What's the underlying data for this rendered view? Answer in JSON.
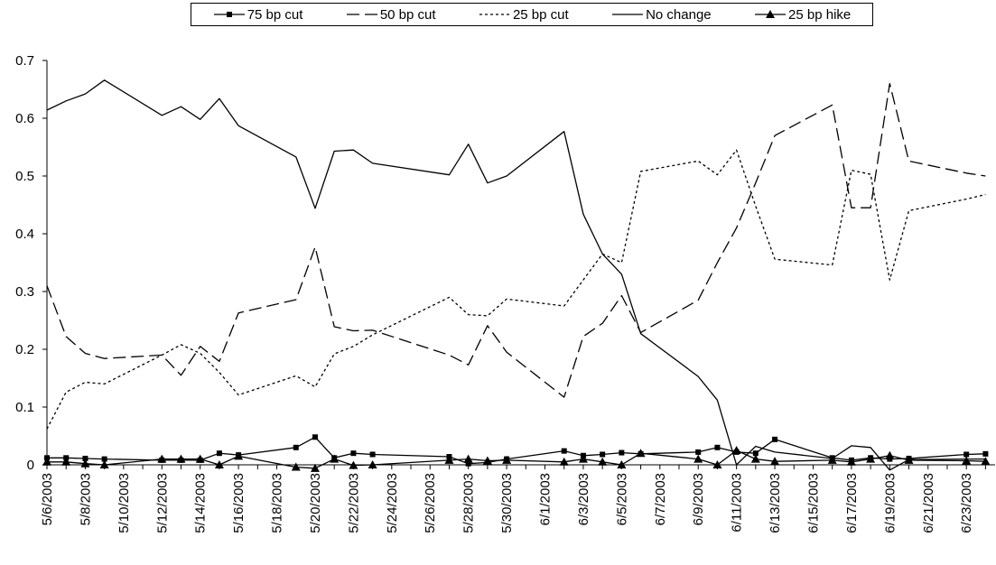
{
  "chart_data": {
    "type": "line",
    "title": "",
    "xlabel": "",
    "ylabel": "",
    "ylim": [
      0,
      0.7
    ],
    "yticks": [
      "0",
      "0.1",
      "0.2",
      "0.3",
      "0.4",
      "0.5",
      "0.6",
      "0.7"
    ],
    "xticks": [
      "5/6/2003",
      "5/8/2003",
      "5/10/2003",
      "5/12/2003",
      "5/14/2003",
      "5/16/2003",
      "5/18/2003",
      "5/20/2003",
      "5/22/2003",
      "5/24/2003",
      "5/26/2003",
      "5/28/2003",
      "5/30/2003",
      "6/1/2003",
      "6/3/2003",
      "6/5/2003",
      "6/7/2003",
      "6/9/2003",
      "6/11/2003",
      "6/13/2003",
      "6/15/2003",
      "6/17/2003",
      "6/19/2003",
      "6/21/2003",
      "6/23/2003"
    ],
    "legend_position": "top",
    "grid": false,
    "x": [
      "5/6/2003",
      "5/7/2003",
      "5/8/2003",
      "5/9/2003",
      "5/12/2003",
      "5/13/2003",
      "5/14/2003",
      "5/15/2003",
      "5/16/2003",
      "5/19/2003",
      "5/20/2003",
      "5/21/2003",
      "5/22/2003",
      "5/23/2003",
      "5/27/2003",
      "5/28/2003",
      "5/29/2003",
      "5/30/2003",
      "6/2/2003",
      "6/3/2003",
      "6/4/2003",
      "6/5/2003",
      "6/6/2003",
      "6/9/2003",
      "6/10/2003",
      "6/11/2003",
      "6/12/2003",
      "6/13/2003",
      "6/16/2003",
      "6/17/2003",
      "6/18/2003",
      "6/19/2003",
      "6/20/2003",
      "6/23/2003",
      "6/24/2003"
    ],
    "series": [
      {
        "name": "75 bp cut",
        "style": "solid-square",
        "values": [
          0.012,
          0.012,
          0.011,
          0.01,
          0.008,
          0.008,
          0.008,
          0.02,
          0.017,
          0.03,
          0.048,
          0.012,
          0.02,
          0.018,
          0.014,
          0.002,
          0.004,
          0.01,
          0.024,
          0.016,
          0.018,
          0.021,
          0.019,
          0.022,
          0.03,
          0.022,
          0.02,
          0.044,
          0.012,
          0.008,
          0.012,
          0.01,
          0.011,
          0.018,
          0.019
        ]
      },
      {
        "name": "50 bp cut",
        "style": "dashed",
        "values": [
          0.31,
          0.222,
          0.193,
          0.184,
          0.19,
          0.155,
          0.205,
          0.179,
          0.263,
          0.286,
          0.377,
          0.239,
          0.232,
          0.233,
          0.19,
          0.173,
          0.241,
          0.195,
          0.117,
          0.222,
          0.245,
          0.293,
          0.229,
          0.285,
          0.35,
          0.41,
          0.488,
          0.57,
          0.623,
          0.445,
          0.445,
          0.66,
          0.526,
          0.505,
          0.5
        ]
      },
      {
        "name": "25 bp cut",
        "style": "dotted",
        "values": [
          0.062,
          0.126,
          0.143,
          0.14,
          0.19,
          0.208,
          0.193,
          0.16,
          0.121,
          0.154,
          0.135,
          0.192,
          0.205,
          0.225,
          0.29,
          0.26,
          0.258,
          0.287,
          0.275,
          0.32,
          0.365,
          0.35,
          0.508,
          0.526,
          0.502,
          0.545,
          0.448,
          0.356,
          0.346,
          0.51,
          0.503,
          0.32,
          0.44,
          0.46,
          0.468
        ]
      },
      {
        "name": "No change",
        "style": "solid",
        "values": [
          0.614,
          0.63,
          0.642,
          0.666,
          0.605,
          0.62,
          0.598,
          0.634,
          0.587,
          0.533,
          0.444,
          0.543,
          0.545,
          0.522,
          0.502,
          0.555,
          0.488,
          0.5,
          0.577,
          0.434,
          0.365,
          0.33,
          0.227,
          0.153,
          0.112,
          0.0,
          0.032,
          0.022,
          0.011,
          0.033,
          0.03,
          -0.009,
          0.009,
          0.01,
          0.01
        ]
      },
      {
        "name": "25 bp hike",
        "style": "solid-triangle",
        "values": [
          0.005,
          0.005,
          0.002,
          0.0,
          0.01,
          0.01,
          0.01,
          0.0,
          0.015,
          -0.004,
          -0.006,
          0.01,
          -0.001,
          0.0,
          0.008,
          0.01,
          0.007,
          0.008,
          0.005,
          0.01,
          0.005,
          0.0,
          0.02,
          0.01,
          0.0,
          0.025,
          0.01,
          0.006,
          0.008,
          0.005,
          0.01,
          0.016,
          0.008,
          0.007,
          0.006
        ]
      }
    ]
  }
}
